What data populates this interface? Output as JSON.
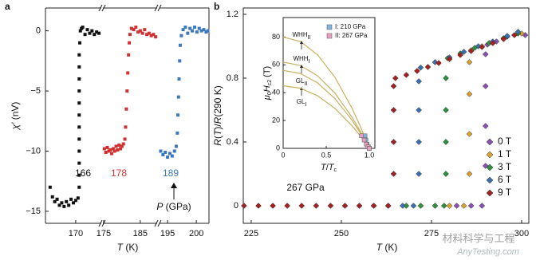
{
  "chart_data": [
    {
      "type": "scatter",
      "panel": "a",
      "xlabel": [
        {
          "text": "T",
          "italic": true
        },
        {
          "text": " (K)"
        }
      ],
      "ylabel": [
        {
          "text": "χ′",
          "italic": true
        },
        {
          "text": " (nV)"
        }
      ],
      "xsegments": [
        [
          167.4,
          172.2
        ],
        [
          174.8,
          189.6
        ],
        [
          193.6,
          202.2
        ]
      ],
      "ylim": [
        -16,
        1.9
      ],
      "xticks": [
        170,
        175,
        185,
        195,
        200
      ],
      "yticks": [
        0,
        {
          "value": -5,
          "label": "−5"
        },
        {
          "value": -10,
          "label": "−10"
        },
        {
          "value": -15,
          "label": "−15"
        }
      ],
      "annotations": [
        {
          "text": "166",
          "color": "#111111"
        },
        {
          "text": "178",
          "color": "#d03030"
        },
        {
          "text": "189",
          "color": "#3b78c0"
        }
      ],
      "pressure_label": [
        {
          "text": "P",
          "italic": true
        },
        {
          "text": " (GPa)"
        }
      ],
      "series": [
        {
          "color": "#111111",
          "x": [
            167.8,
            168.0,
            168.2,
            168.4,
            168.6,
            168.8,
            169.0,
            169.2,
            169.4,
            169.6,
            169.8,
            170.0,
            170.2,
            170.3,
            170.3,
            170.3,
            170.3,
            170.3,
            170.3,
            170.3,
            170.3,
            170.3,
            170.3,
            170.3,
            170.3,
            170.35,
            170.4,
            170.5,
            170.6,
            170.8,
            171.0,
            171.2,
            171.4,
            171.6,
            171.8,
            172.0
          ],
          "values": [
            -13.0,
            -13.8,
            -14.2,
            -14.0,
            -14.5,
            -14.3,
            -14.6,
            -14.2,
            -14.5,
            -14.0,
            -14.3,
            -14.1,
            -13.9,
            -13,
            -12,
            -11,
            -10,
            -9,
            -8,
            -7,
            -6,
            -5,
            -4,
            -3,
            -2,
            -1,
            0,
            0.2,
            0.3,
            -0.3,
            0.1,
            -0.2,
            0.0,
            -0.3,
            -0.1,
            -0.2
          ]
        },
        {
          "color": "#d03030",
          "x": [
            175.2,
            175.6,
            176.0,
            176.4,
            176.8,
            177.2,
            177.6,
            178.0,
            178.4,
            178.8,
            179.2,
            179.6,
            180.0,
            180.4,
            180.8,
            181.0,
            181.2,
            181.4,
            181.6,
            181.8,
            182.0,
            182.2,
            182.6,
            183.2,
            183.8,
            184.4,
            185.0,
            185.6,
            186.2,
            186.8,
            187.4,
            188.0,
            188.6,
            189.2
          ],
          "values": [
            -9.8,
            -10.1,
            -9.7,
            -10.0,
            -9.9,
            -10.2,
            -9.8,
            -10.0,
            -9.6,
            -9.9,
            -9.5,
            -9.8,
            -9.6,
            -9.4,
            -9,
            -8,
            -6.5,
            -5,
            -3.5,
            -2,
            -1,
            -0.3,
            0.2,
            0.1,
            0.3,
            -0.1,
            0.0,
            -0.2,
            0.1,
            -0.3,
            -0.2,
            -0.4,
            -0.3,
            -0.5
          ]
        },
        {
          "color": "#3b78c0",
          "x": [
            193.8,
            194.2,
            194.6,
            195.0,
            195.4,
            195.8,
            196.2,
            196.5,
            196.7,
            196.8,
            196.9,
            197.0,
            197.1,
            197.2,
            197.4,
            197.7,
            198.1,
            198.5,
            198.9,
            199.3,
            199.7,
            200.1,
            200.5,
            200.9,
            201.3,
            201.7,
            202.0
          ],
          "values": [
            -10.0,
            -10.3,
            -10.1,
            -10.5,
            -10.2,
            -10.4,
            -10.0,
            -9.6,
            -8.5,
            -7,
            -5.5,
            -4,
            -2.5,
            -1.2,
            -0.4,
            0.1,
            0.3,
            -0.2,
            0.2,
            0.0,
            0.3,
            -0.1,
            0.2,
            0.0,
            0.1,
            -0.1,
            0.0
          ]
        }
      ]
    },
    {
      "type": "scatter",
      "panel": "b",
      "xlabel": [
        {
          "text": "T",
          "italic": true
        },
        {
          "text": " (K)"
        }
      ],
      "ylabel": [
        {
          "text": "R",
          "italic": true
        },
        {
          "text": "("
        },
        {
          "text": "T",
          "italic": true
        },
        {
          "text": ")/"
        },
        {
          "text": "R",
          "italic": true
        },
        {
          "text": "(290 K)"
        }
      ],
      "xlim": [
        222.8,
        302
      ],
      "ylim": [
        -0.11,
        1.24
      ],
      "xticks": [
        225,
        250,
        275,
        300
      ],
      "yticks": [
        0,
        0.4,
        0.8,
        1.2
      ],
      "legend": "right",
      "annotation": "267 GPa",
      "series": [
        {
          "name": "0 T",
          "color": "#8a4fb5",
          "x": [
            282,
            286,
            289,
            290,
            290,
            290,
            290,
            290.5,
            293,
            296,
            299,
            301
          ],
          "values": [
            0,
            0,
            0,
            0.25,
            0.5,
            0.75,
            0.95,
            1.01,
            1.03,
            1.06,
            1.08,
            1.07
          ]
        },
        {
          "name": "1 T",
          "color": "#d9a030",
          "x": [
            276,
            280,
            284,
            285.5,
            285.5,
            285.5,
            285.5,
            286,
            289,
            292,
            295,
            298,
            300
          ],
          "values": [
            0,
            0,
            0,
            0.2,
            0.45,
            0.7,
            0.9,
            0.975,
            1.0,
            1.02,
            1.05,
            1.07,
            1.08
          ]
        },
        {
          "name": "3 T",
          "color": "#2f8f3a",
          "x": [
            268,
            272,
            276,
            278.5,
            279,
            279,
            279,
            279,
            279.5,
            283,
            287,
            291,
            295,
            299
          ],
          "values": [
            0,
            0,
            0,
            0,
            0.2,
            0.4,
            0.6,
            0.8,
            0.925,
            0.955,
            0.99,
            1.02,
            1.05,
            1.08
          ]
        },
        {
          "name": "6 T",
          "color": "#3a6fb0",
          "x": [
            255,
            259,
            263,
            267,
            270,
            271.5,
            271.5,
            271.5,
            271.5,
            272,
            276,
            280,
            284,
            288,
            292,
            296,
            299
          ],
          "values": [
            0,
            0,
            0,
            0,
            0,
            0.2,
            0.4,
            0.6,
            0.78,
            0.866,
            0.9,
            0.93,
            0.965,
            1.0,
            1.03,
            1.065,
            1.09
          ]
        },
        {
          "name": "9 T",
          "color": "#a52020",
          "x": [
            223,
            227,
            231,
            235,
            239,
            243,
            247,
            251,
            255,
            259,
            263,
            264.5,
            264.5,
            264.5,
            264.5,
            265,
            268,
            271,
            274,
            277,
            280,
            283,
            286,
            289,
            292,
            295,
            298
          ],
          "values": [
            0,
            0,
            0,
            0,
            0,
            0,
            0,
            0,
            0,
            0,
            0,
            0.2,
            0.4,
            0.6,
            0.75,
            0.8,
            0.82,
            0.845,
            0.87,
            0.895,
            0.92,
            0.945,
            0.97,
            0.995,
            1.02,
            1.045,
            1.07
          ]
        }
      ]
    },
    {
      "type": "line",
      "panel": "inset",
      "xlabel": [
        {
          "text": "T",
          "italic": true
        },
        {
          "text": "/"
        },
        {
          "text": "T",
          "italic": true
        },
        {
          "text": "c",
          "sub": true
        }
      ],
      "ylabel": [
        {
          "text": "μ",
          "italic": true
        },
        {
          "text": "0",
          "sub": true
        },
        {
          "text": "H",
          "italic": true
        },
        {
          "text": "c2",
          "sub": true
        },
        {
          "text": " (T)"
        }
      ],
      "xlim": [
        0,
        1.065
      ],
      "ylim": [
        0,
        94
      ],
      "xticks": [
        0,
        0.5,
        {
          "value": 1,
          "label": "1.0"
        }
      ],
      "yticks": [
        0,
        20,
        40,
        60,
        80
      ],
      "curves": [
        {
          "name": [
            {
              "text": "WHH"
            },
            {
              "text": "II",
              "sub": true
            }
          ],
          "color": "#c8b060",
          "x": [
            0,
            0.2,
            0.4,
            0.6,
            0.8,
            0.9,
            1.0
          ],
          "values": [
            80,
            76.8,
            67.2,
            51.2,
            28.8,
            15.2,
            0
          ]
        },
        {
          "name": [
            {
              "text": "WHH"
            },
            {
              "text": "I",
              "sub": true
            }
          ],
          "color": "#c8b060",
          "x": [
            0,
            0.2,
            0.4,
            0.6,
            0.8,
            0.9,
            1.0
          ],
          "values": [
            62,
            59.5,
            52.1,
            39.7,
            22.3,
            11.8,
            0
          ]
        },
        {
          "name": [
            {
              "text": "GL"
            },
            {
              "text": "II",
              "sub": true
            }
          ],
          "color": "#c8b060",
          "x": [
            0,
            0.2,
            0.4,
            0.6,
            0.8,
            0.9,
            1.0
          ],
          "values": [
            56,
            53.8,
            47,
            35.8,
            20.2,
            10.6,
            0
          ]
        },
        {
          "name": [
            {
              "text": "GL"
            },
            {
              "text": "I",
              "sub": true
            }
          ],
          "color": "#c8b060",
          "x": [
            0,
            0.2,
            0.4,
            0.6,
            0.8,
            0.9,
            1.0
          ],
          "values": [
            45,
            43.2,
            37.8,
            28.8,
            16.2,
            8.6,
            0
          ]
        }
      ],
      "series": [
        {
          "name": "I: 210 GPa",
          "color": "#7fb4e0",
          "x": [
            0.95,
            0.96,
            0.975,
            0.99,
            1.0
          ],
          "values": [
            9,
            6,
            3,
            1,
            0
          ]
        },
        {
          "name": "II: 267 GPa",
          "color": "#e8a0c0",
          "x": [
            0.91,
            0.94,
            0.965,
            0.985,
            1.0
          ],
          "values": [
            9,
            6,
            3,
            1,
            0
          ]
        }
      ]
    }
  ],
  "panel_labels": [
    "a",
    "b"
  ],
  "watermark": {
    "cn": "材料科学与工程",
    "en": "AnyTesting.com"
  }
}
